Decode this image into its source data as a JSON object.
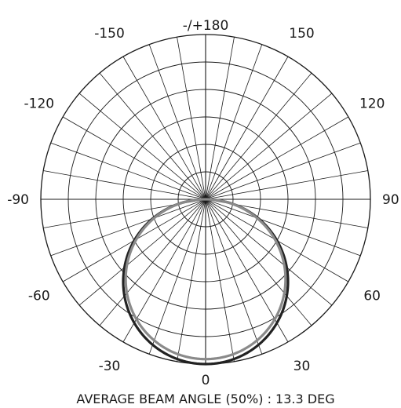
{
  "chart_data": {
    "type": "polar",
    "angle_labels": [
      {
        "angle": 180,
        "text": "-/+180"
      },
      {
        "angle": -150,
        "text": "-150"
      },
      {
        "angle": 150,
        "text": "150"
      },
      {
        "angle": -120,
        "text": "-120"
      },
      {
        "angle": 120,
        "text": "120"
      },
      {
        "angle": -90,
        "text": "-90"
      },
      {
        "angle": 90,
        "text": "90"
      },
      {
        "angle": -60,
        "text": "-60"
      },
      {
        "angle": 60,
        "text": "60"
      },
      {
        "angle": -30,
        "text": "-30"
      },
      {
        "angle": 30,
        "text": "30"
      },
      {
        "angle": 0,
        "text": "0"
      }
    ],
    "caption": "AVERAGE BEAM ANGLE (50%) : 13.3 DEG",
    "radial_rings": 6,
    "spoke_step_deg": 10,
    "grid": true,
    "series": [
      {
        "color": "#222222",
        "shape": "cos",
        "peak": 1.0
      },
      {
        "color": "#8a8a8a",
        "shape": "cos",
        "peak": 0.97
      }
    ]
  }
}
